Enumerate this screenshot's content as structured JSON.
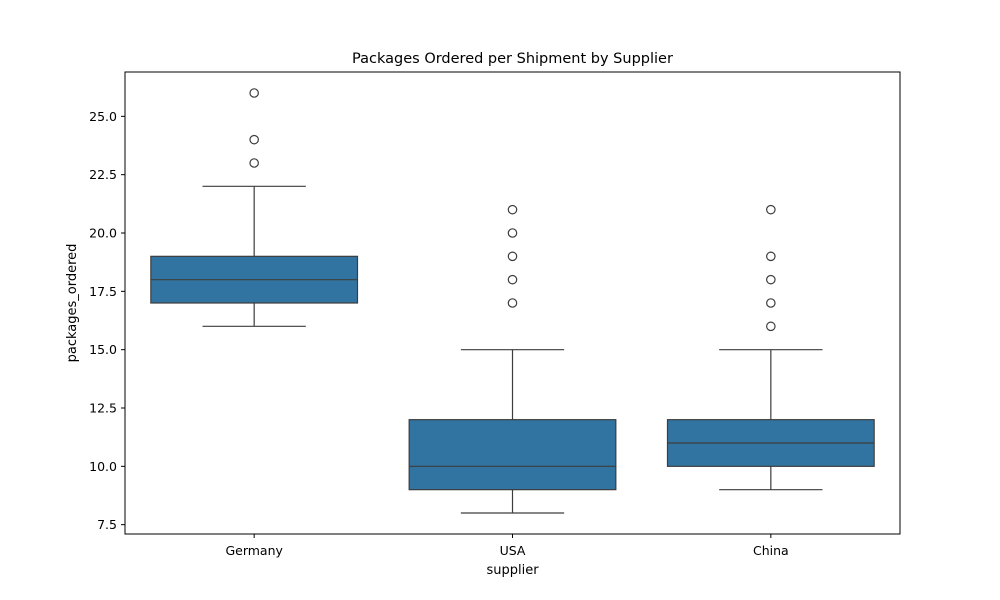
{
  "chart_data": {
    "type": "box",
    "title": "Packages Ordered per Shipment by Supplier",
    "xlabel": "supplier",
    "ylabel": "packages_ordered",
    "categories": [
      "Germany",
      "USA",
      "China"
    ],
    "ylim": [
      7.1,
      26.9
    ],
    "yticks": [
      7.5,
      10.0,
      12.5,
      15.0,
      17.5,
      20.0,
      22.5,
      25.0
    ],
    "ytick_labels": [
      "7.5",
      "10.0",
      "12.5",
      "15.0",
      "17.5",
      "20.0",
      "22.5",
      "25.0"
    ],
    "grid": false,
    "box_color": "#3274a1",
    "line_color": "#3d3d3d",
    "boxes": [
      {
        "category": "Germany",
        "whisker_low": 16,
        "q1": 17,
        "median": 18,
        "q3": 19,
        "whisker_high": 22,
        "outliers": [
          23,
          24,
          26
        ]
      },
      {
        "category": "USA",
        "whisker_low": 8,
        "q1": 9,
        "median": 10,
        "q3": 12,
        "whisker_high": 15,
        "outliers": [
          17,
          18,
          19,
          20,
          21
        ]
      },
      {
        "category": "China",
        "whisker_low": 9,
        "q1": 10,
        "median": 11,
        "q3": 12,
        "whisker_high": 15,
        "outliers": [
          16,
          17,
          18,
          19,
          21
        ]
      }
    ]
  }
}
